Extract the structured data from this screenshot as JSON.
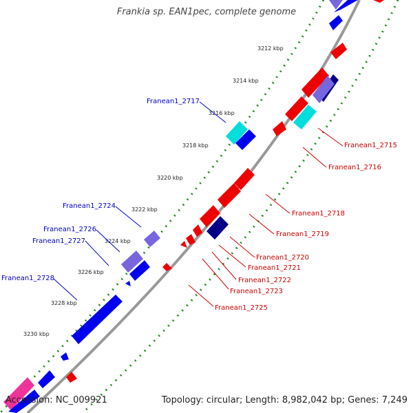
{
  "title": "Frankia sp. EAN1pec, complete genome",
  "footer": {
    "accession": "Accession: NC_009921",
    "summary": "Topology: circular; Length: 8,982,042 bp; Genes: 7,249"
  },
  "colors": {
    "forward_gene": "#0000ee",
    "forward_light": "#7766dd",
    "forward_dark": "#000088",
    "reverse_gene": "#ee0000",
    "cyan_gene": "#00dddd",
    "pink_gene": "#ee3399",
    "backbone": "#888888",
    "dotted_track": "#228822"
  },
  "tick_labels": [
    "3212 kbp",
    "3214 kbp",
    "3216 kbp",
    "3218 kbp",
    "3220 kbp",
    "3222 kbp",
    "3224 kbp",
    "3226 kbp",
    "3228 kbp",
    "3230 kbp"
  ],
  "forward_labels": [
    "Franean1_2717",
    "Franean1_2724",
    "Franean1_2726",
    "Franean1_2727",
    "Franean1_2728"
  ],
  "reverse_labels": [
    "Franean1_2715",
    "Franean1_2716",
    "Franean1_2718",
    "Franean1_2719",
    "Franean1_2720",
    "Franean1_2721",
    "Franean1_2722",
    "Franean1_2723",
    "Franean1_2725"
  ]
}
